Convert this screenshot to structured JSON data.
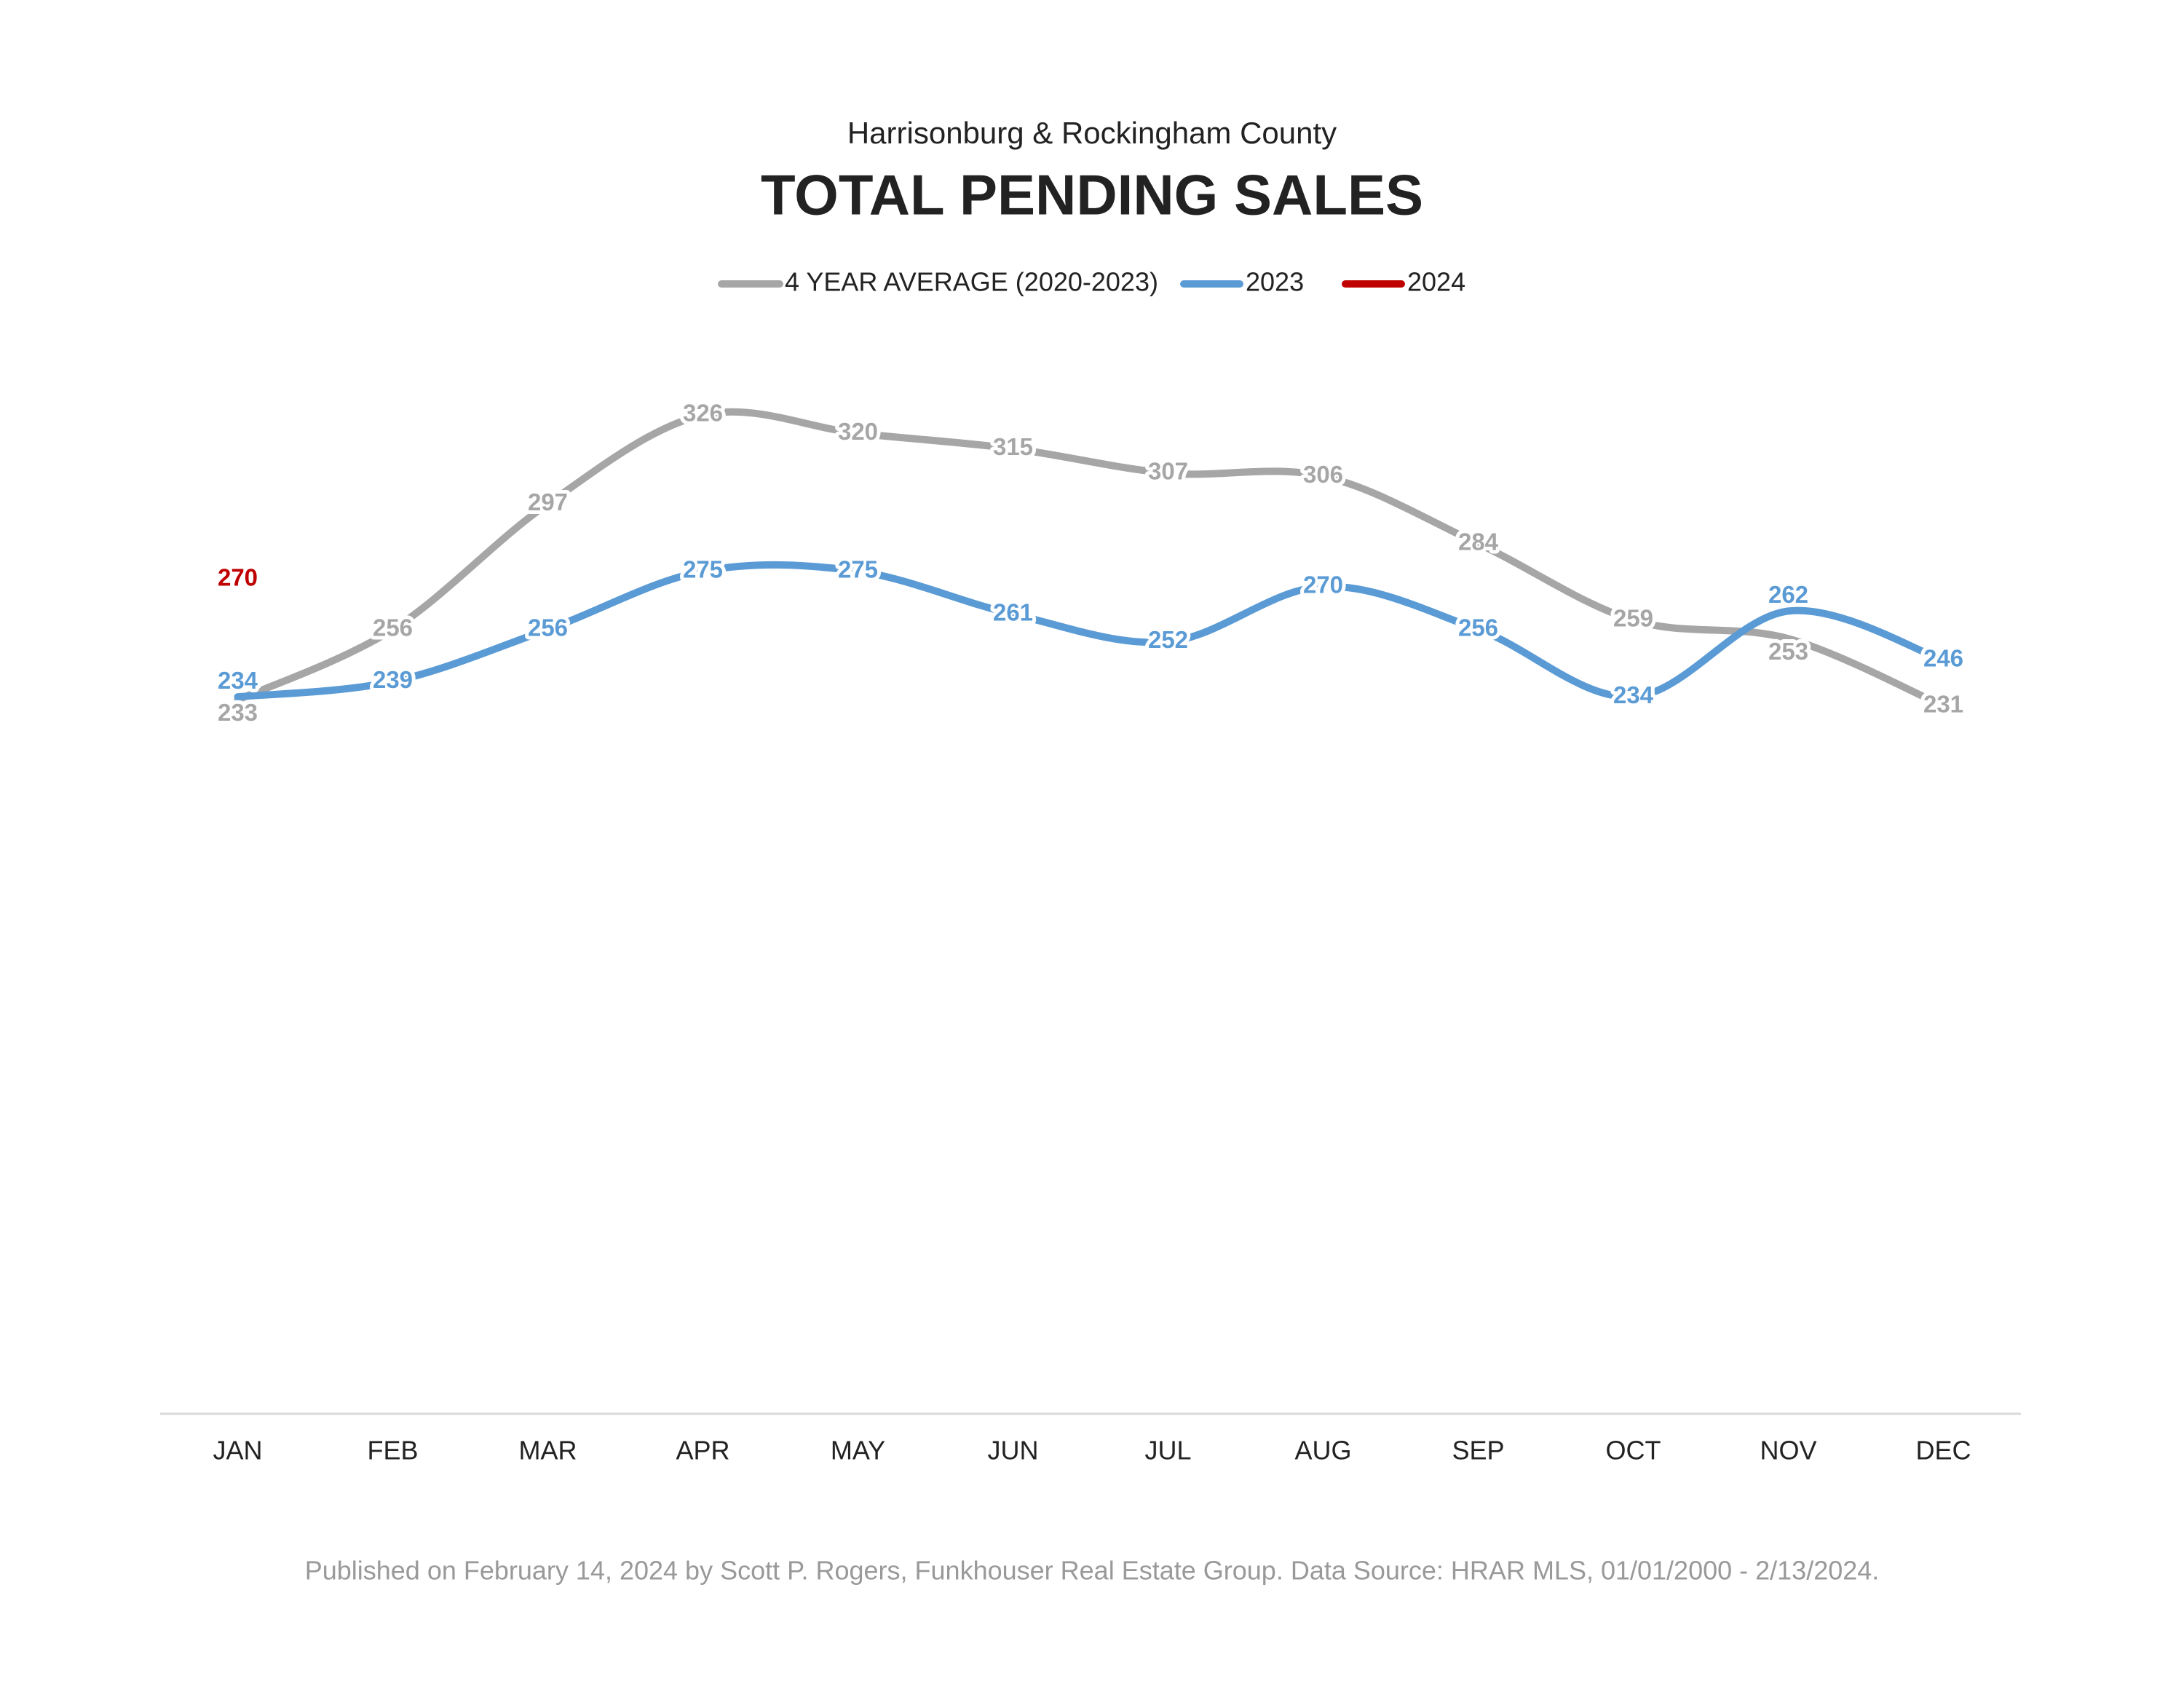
{
  "chart_data": {
    "type": "line",
    "subtitle": "Harrisonburg & Rockingham County",
    "title": "TOTAL PENDING SALES",
    "categories": [
      "JAN",
      "FEB",
      "MAR",
      "APR",
      "MAY",
      "JUN",
      "JUL",
      "AUG",
      "SEP",
      "OCT",
      "NOV",
      "DEC"
    ],
    "series": [
      {
        "name": "4 YEAR AVERAGE (2020-2023)",
        "color": "#a6a6a6",
        "values": [
          233,
          256,
          297,
          326,
          320,
          315,
          307,
          306,
          284,
          259,
          253,
          231
        ]
      },
      {
        "name": "2023",
        "color": "#5b9bd5",
        "values": [
          234,
          239,
          256,
          275,
          275,
          261,
          252,
          270,
          256,
          234,
          262,
          246
        ]
      },
      {
        "name": "2024",
        "color": "#c00000",
        "values": [
          270,
          null,
          null,
          null,
          null,
          null,
          null,
          null,
          null,
          null,
          null,
          null
        ]
      }
    ],
    "ylim": [
      0,
      350
    ],
    "legend": "top",
    "footnote": "Published on February 14, 2024 by Scott P. Rogers, Funkhouser Real Estate Group. Data Source: HRAR MLS, 01/01/2000 - 2/13/2024."
  }
}
